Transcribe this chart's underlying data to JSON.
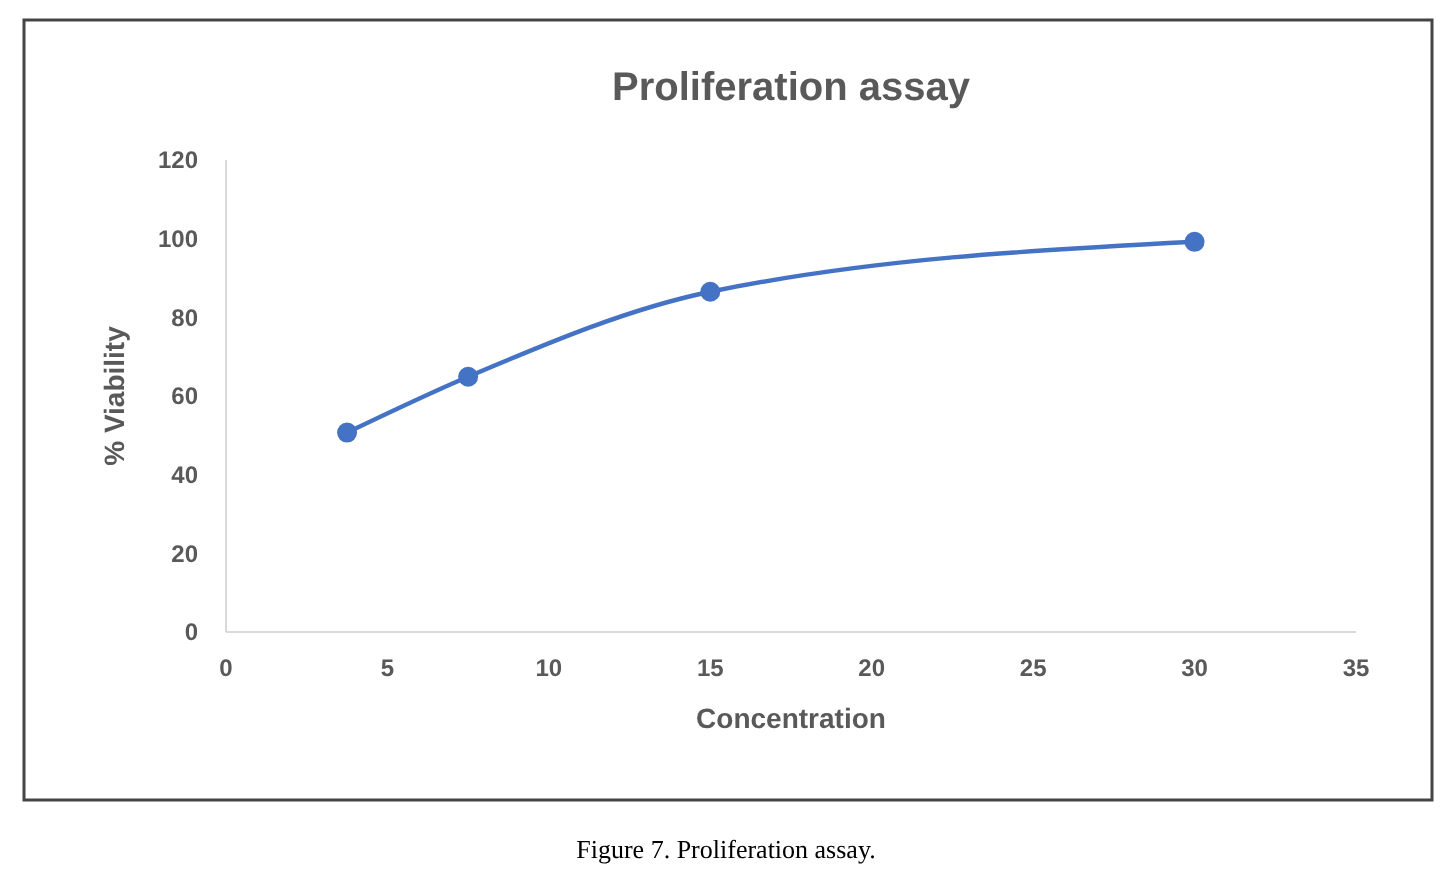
{
  "chart_data": {
    "type": "line",
    "title": "Proliferation assay",
    "xlabel": "Concentration",
    "ylabel": "% Viability",
    "xlim": [
      0,
      35
    ],
    "xticks": [
      0,
      5,
      10,
      15,
      20,
      25,
      30,
      35
    ],
    "ylim": [
      0,
      120
    ],
    "yticks": [
      0,
      20,
      40,
      60,
      80,
      100,
      120
    ],
    "grid": false,
    "marker": "circle",
    "line_style": "solid",
    "series": [
      {
        "color": "#4472c4",
        "x": [
          3.75,
          7.5,
          15,
          30
        ],
        "values": [
          50.7,
          64.9,
          86.5,
          99.2
        ]
      }
    ],
    "annotations": [
      "Figure 7. Proliferation assay."
    ]
  }
}
